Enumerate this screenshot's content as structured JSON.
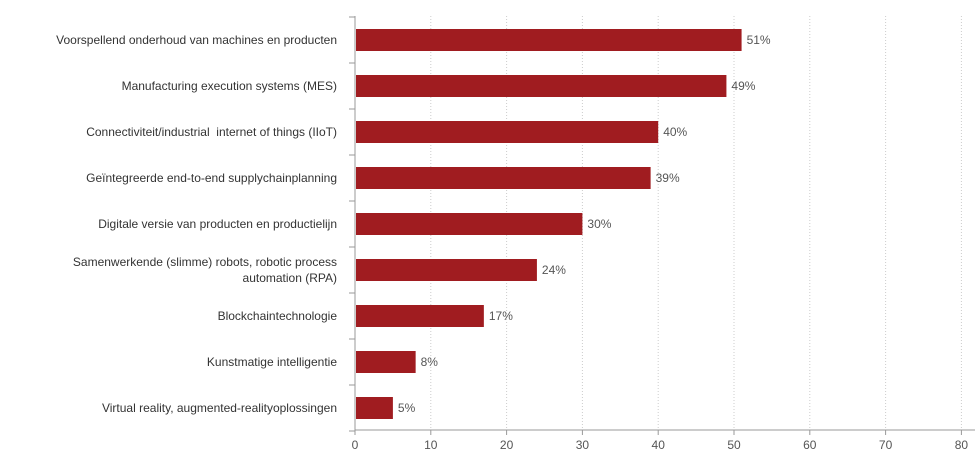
{
  "chart_data": {
    "type": "bar",
    "orientation": "horizontal",
    "categories": [
      "Voorspellend onderhoud van machines en producten",
      "Manufacturing execution systems (MES)",
      "Connectiviteit/industrial  internet of things (IIoT)",
      "Geïntegreerde end-to-end supplychainplanning",
      "Digitale versie van producten en productielijn",
      "Samenwerkende (slimme) robots, robotic process automation (RPA)",
      "Blockchaintechnologie",
      "Kunstmatige intelligentie",
      "Virtual reality, augmented-realityoplossingen"
    ],
    "category_lines": [
      [
        "Voorspellend onderhoud van machines en producten"
      ],
      [
        "Manufacturing execution systems (MES)"
      ],
      [
        "Connectiviteit/industrial  internet of things (IIoT)"
      ],
      [
        "Geïntegreerde end-to-end supplychainplanning"
      ],
      [
        "Digitale versie van producten en productielijn"
      ],
      [
        "Samenwerkende (slimme) robots, robotic process",
        "automation (RPA)"
      ],
      [
        "Blockchaintechnologie"
      ],
      [
        "Kunstmatige intelligentie"
      ],
      [
        "Virtual reality, augmented-realityoplossingen"
      ]
    ],
    "values": [
      51,
      49,
      40,
      39,
      30,
      24,
      17,
      8,
      5
    ],
    "value_labels": [
      "51%",
      "49%",
      "40%",
      "39%",
      "30%",
      "24%",
      "17%",
      "8%",
      "5%"
    ],
    "xlim": [
      0,
      80
    ],
    "xticks": [
      0,
      10,
      20,
      30,
      40,
      50,
      60,
      70,
      80
    ],
    "tick_labels": [
      "0",
      "10",
      "20",
      "30",
      "40",
      "50",
      "60",
      "70",
      "80"
    ],
    "grid": "vertical dotted",
    "bar_color": "#a01c20",
    "title": "",
    "xlabel": "",
    "ylabel": ""
  }
}
